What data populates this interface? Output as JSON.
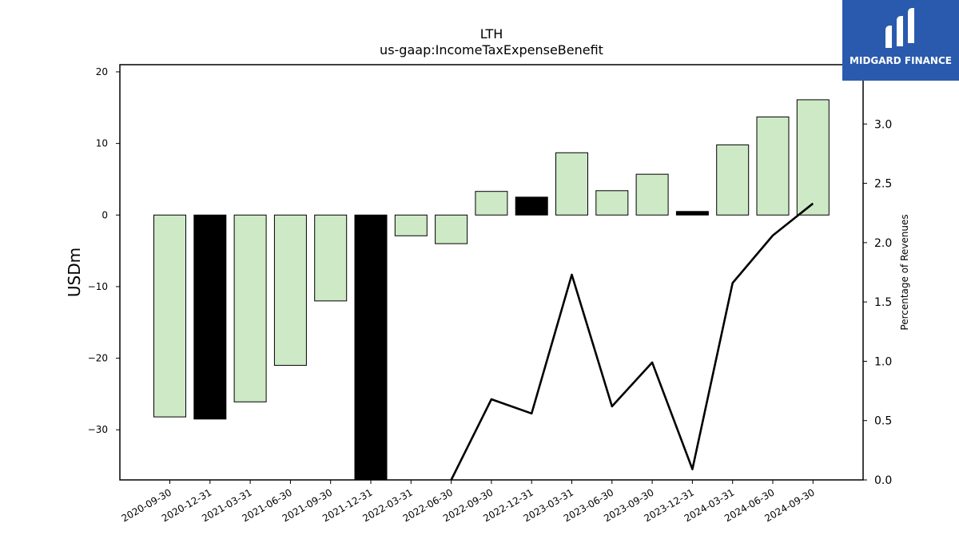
{
  "chart_data": {
    "type": "bar",
    "title": "LTH",
    "subtitle": "us-gaap:IncomeTaxExpenseBenefit",
    "ylabel": "USDm",
    "ylabel_right": "Percentage of Revenues",
    "ylim": [
      -37,
      21
    ],
    "ylim_right": [
      0,
      3.5
    ],
    "yticks": [
      20,
      10,
      0,
      -10,
      -20,
      -30
    ],
    "yticks_right": [
      0.0,
      0.5,
      1.0,
      1.5,
      2.0,
      2.5,
      3.0
    ],
    "categories": [
      "2020-09-30",
      "2020-12-31",
      "2021-03-31",
      "2021-06-30",
      "2021-09-30",
      "2021-12-31",
      "2022-03-31",
      "2022-06-30",
      "2022-09-30",
      "2022-12-31",
      "2023-03-31",
      "2023-06-30",
      "2023-09-30",
      "2023-12-31",
      "2024-03-31",
      "2024-06-30",
      "2024-09-30"
    ],
    "values": [
      -28.2,
      -28.5,
      -26.1,
      -21.0,
      -12.0,
      -37.0,
      -2.9,
      -4.0,
      3.3,
      2.5,
      8.7,
      3.4,
      5.7,
      0.5,
      9.8,
      13.7,
      16.1
    ],
    "bar_fill": [
      "#cde9c6",
      "#000000",
      "#cde9c6",
      "#cde9c6",
      "#cde9c6",
      "#000000",
      "#cde9c6",
      "#cde9c6",
      "#cde9c6",
      "#000000",
      "#cde9c6",
      "#cde9c6",
      "#cde9c6",
      "#000000",
      "#cde9c6",
      "#cde9c6",
      "#cde9c6"
    ],
    "line_series": {
      "axis": "right",
      "values": [
        null,
        null,
        null,
        null,
        null,
        null,
        null,
        0.0,
        0.68,
        0.56,
        1.73,
        0.62,
        0.99,
        0.09,
        1.66,
        2.06,
        2.33
      ]
    },
    "colors": {
      "positive_bar": "#cde9c6",
      "highlight_bar": "#000000",
      "line": "#000000"
    },
    "grid": false,
    "legend": "none"
  },
  "logo": {
    "text": "MIDGARD FINANCE",
    "background": "#2a5aad"
  }
}
